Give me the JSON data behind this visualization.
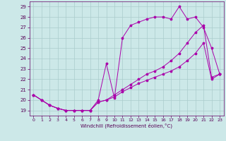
{
  "xlabel": "Windchill (Refroidissement éolien,°C)",
  "xlim": [
    -0.5,
    23.5
  ],
  "ylim": [
    18.5,
    29.5
  ],
  "yticks": [
    19,
    20,
    21,
    22,
    23,
    24,
    25,
    26,
    27,
    28,
    29
  ],
  "xticks": [
    0,
    1,
    2,
    3,
    4,
    5,
    6,
    7,
    8,
    9,
    10,
    11,
    12,
    13,
    14,
    15,
    16,
    17,
    18,
    19,
    20,
    21,
    22,
    23
  ],
  "bg_color": "#cce8e8",
  "line_color": "#aa00aa",
  "grid_color": "#aacccc",
  "line1_x": [
    0,
    1,
    2,
    3,
    4,
    5,
    6,
    7,
    8,
    9,
    10,
    11,
    12,
    13,
    14,
    15,
    16,
    17,
    18,
    19,
    20,
    21,
    22,
    23
  ],
  "line1_y": [
    20.5,
    20.0,
    19.5,
    19.2,
    19.0,
    19.0,
    19.0,
    19.0,
    20.0,
    23.5,
    20.2,
    26.0,
    27.2,
    27.5,
    27.8,
    28.0,
    28.0,
    27.8,
    29.0,
    27.8,
    28.0,
    27.0,
    25.0,
    22.5
  ],
  "line2_x": [
    0,
    1,
    2,
    3,
    4,
    5,
    6,
    7,
    8,
    9,
    10,
    11,
    12,
    13,
    14,
    15,
    16,
    17,
    18,
    19,
    20,
    21,
    22,
    23
  ],
  "line2_y": [
    20.5,
    20.0,
    19.5,
    19.2,
    19.0,
    19.0,
    19.0,
    19.0,
    19.8,
    20.0,
    20.5,
    21.0,
    21.5,
    22.0,
    22.5,
    22.8,
    23.2,
    23.8,
    24.5,
    25.5,
    26.5,
    27.2,
    22.2,
    22.5
  ],
  "line3_x": [
    0,
    1,
    2,
    3,
    4,
    5,
    6,
    7,
    8,
    9,
    10,
    11,
    12,
    13,
    14,
    15,
    16,
    17,
    18,
    19,
    20,
    21,
    22,
    23
  ],
  "line3_y": [
    20.5,
    20.0,
    19.5,
    19.2,
    19.0,
    19.0,
    19.0,
    19.0,
    19.8,
    20.0,
    20.3,
    20.8,
    21.2,
    21.6,
    21.9,
    22.2,
    22.5,
    22.8,
    23.2,
    23.8,
    24.5,
    25.5,
    22.0,
    22.5
  ]
}
